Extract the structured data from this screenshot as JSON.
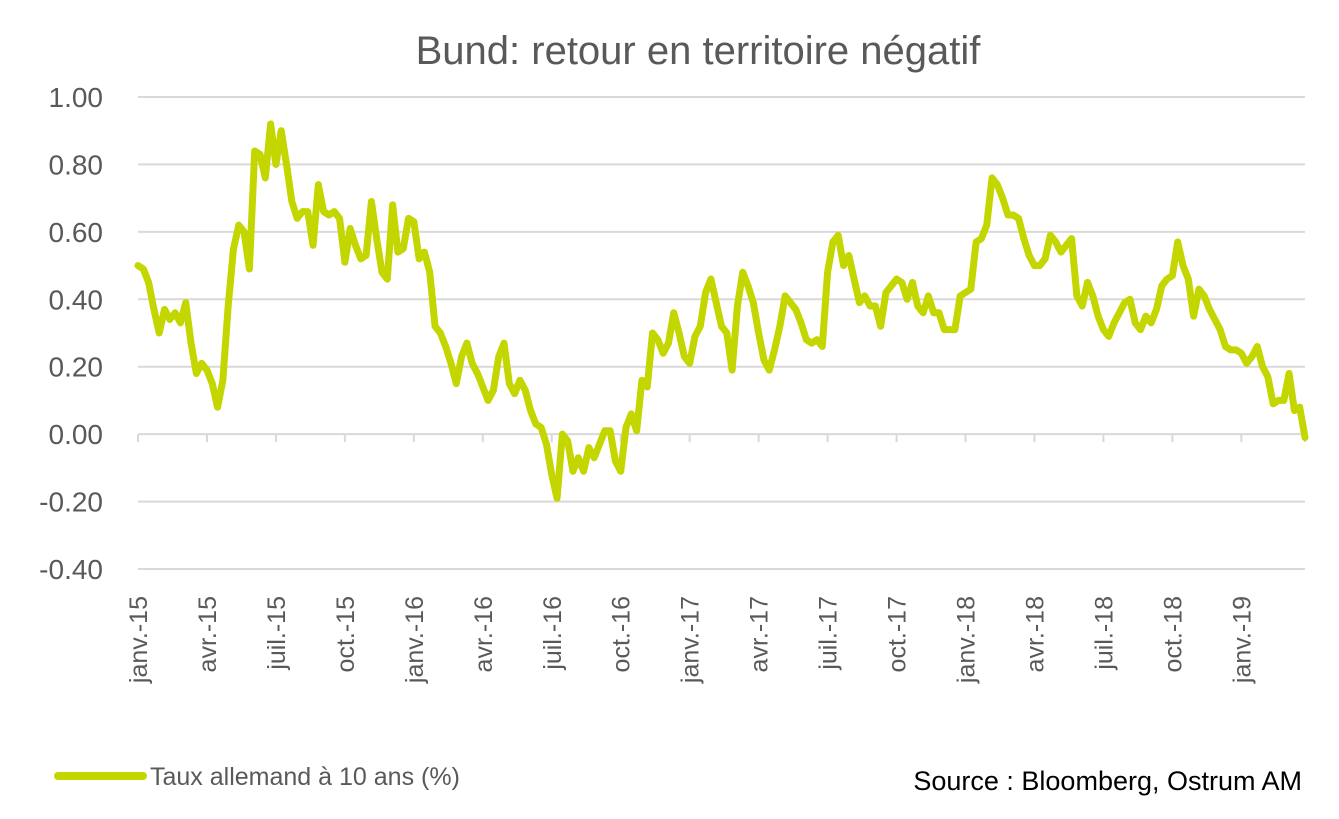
{
  "chart_data": {
    "type": "line",
    "title": "Bund: retour en territoire négatif",
    "xlabel": "",
    "ylabel": "",
    "ylim": [
      -0.4,
      1.0
    ],
    "yticks": [
      "1.00",
      "0.80",
      "0.60",
      "0.40",
      "0.20",
      "0.00",
      "-0.20",
      "-0.40"
    ],
    "ytick_values": [
      1.0,
      0.8,
      0.6,
      0.4,
      0.2,
      0.0,
      -0.2,
      -0.4
    ],
    "xticks": [
      "janv.-15",
      "avr.-15",
      "juil.-15",
      "oct.-15",
      "janv.-16",
      "avr.-16",
      "juil.-16",
      "oct.-16",
      "janv.-17",
      "avr.-17",
      "juil.-17",
      "oct.-17",
      "janv.-18",
      "avr.-18",
      "juil.-18",
      "oct.-18",
      "janv.-19"
    ],
    "grid": true,
    "legend_position": "bottom-left",
    "series": [
      {
        "name": "Taux allemand à 10 ans (%)",
        "color": "#c4d600",
        "points": [
          [
            0,
            0.5
          ],
          [
            1,
            0.49
          ],
          [
            2,
            0.45
          ],
          [
            3,
            0.37
          ],
          [
            4,
            0.3
          ],
          [
            5,
            0.37
          ],
          [
            6,
            0.34
          ],
          [
            7,
            0.36
          ],
          [
            8,
            0.33
          ],
          [
            9,
            0.39
          ],
          [
            10,
            0.27
          ],
          [
            11,
            0.18
          ],
          [
            12,
            0.21
          ],
          [
            13,
            0.19
          ],
          [
            14,
            0.15
          ],
          [
            15,
            0.08
          ],
          [
            16,
            0.16
          ],
          [
            17,
            0.38
          ],
          [
            18,
            0.55
          ],
          [
            19,
            0.62
          ],
          [
            20,
            0.6
          ],
          [
            21,
            0.49
          ],
          [
            22,
            0.84
          ],
          [
            23,
            0.83
          ],
          [
            24,
            0.76
          ],
          [
            25,
            0.92
          ],
          [
            26,
            0.8
          ],
          [
            27,
            0.9
          ],
          [
            28,
            0.8
          ],
          [
            29,
            0.69
          ],
          [
            30,
            0.64
          ],
          [
            31,
            0.66
          ],
          [
            32,
            0.66
          ],
          [
            33,
            0.56
          ],
          [
            34,
            0.74
          ],
          [
            35,
            0.66
          ],
          [
            36,
            0.65
          ],
          [
            37,
            0.66
          ],
          [
            38,
            0.64
          ],
          [
            39,
            0.51
          ],
          [
            40,
            0.61
          ],
          [
            41,
            0.56
          ],
          [
            42,
            0.52
          ],
          [
            43,
            0.53
          ],
          [
            44,
            0.69
          ],
          [
            45,
            0.58
          ],
          [
            46,
            0.48
          ],
          [
            47,
            0.46
          ],
          [
            48,
            0.68
          ],
          [
            49,
            0.54
          ],
          [
            50,
            0.55
          ],
          [
            51,
            0.64
          ],
          [
            52,
            0.63
          ],
          [
            53,
            0.52
          ],
          [
            54,
            0.54
          ],
          [
            55,
            0.48
          ],
          [
            56,
            0.32
          ],
          [
            57,
            0.3
          ],
          [
            58,
            0.26
          ],
          [
            59,
            0.21
          ],
          [
            60,
            0.15
          ],
          [
            61,
            0.23
          ],
          [
            62,
            0.27
          ],
          [
            63,
            0.21
          ],
          [
            64,
            0.18
          ],
          [
            65,
            0.14
          ],
          [
            66,
            0.1
          ],
          [
            67,
            0.13
          ],
          [
            68,
            0.23
          ],
          [
            69,
            0.27
          ],
          [
            70,
            0.15
          ],
          [
            71,
            0.12
          ],
          [
            72,
            0.16
          ],
          [
            73,
            0.13
          ],
          [
            74,
            0.07
          ],
          [
            75,
            0.03
          ],
          [
            76,
            0.02
          ],
          [
            77,
            -0.03
          ],
          [
            78,
            -0.12
          ],
          [
            79,
            -0.19
          ],
          [
            80,
            0.0
          ],
          [
            81,
            -0.02
          ],
          [
            82,
            -0.11
          ],
          [
            83,
            -0.07
          ],
          [
            84,
            -0.11
          ],
          [
            85,
            -0.04
          ],
          [
            86,
            -0.07
          ],
          [
            87,
            -0.03
          ],
          [
            88,
            0.01
          ],
          [
            89,
            0.01
          ],
          [
            90,
            -0.08
          ],
          [
            91,
            -0.11
          ],
          [
            92,
            0.02
          ],
          [
            93,
            0.06
          ],
          [
            94,
            0.01
          ],
          [
            95,
            0.16
          ],
          [
            96,
            0.14
          ],
          [
            97,
            0.3
          ],
          [
            98,
            0.28
          ],
          [
            99,
            0.24
          ],
          [
            100,
            0.27
          ],
          [
            101,
            0.36
          ],
          [
            102,
            0.3
          ],
          [
            103,
            0.23
          ],
          [
            104,
            0.21
          ],
          [
            105,
            0.29
          ],
          [
            106,
            0.32
          ],
          [
            107,
            0.42
          ],
          [
            108,
            0.46
          ],
          [
            109,
            0.39
          ],
          [
            110,
            0.32
          ],
          [
            111,
            0.3
          ],
          [
            112,
            0.19
          ],
          [
            113,
            0.38
          ],
          [
            114,
            0.48
          ],
          [
            115,
            0.44
          ],
          [
            116,
            0.39
          ],
          [
            117,
            0.3
          ],
          [
            118,
            0.22
          ],
          [
            119,
            0.19
          ],
          [
            120,
            0.25
          ],
          [
            121,
            0.32
          ],
          [
            122,
            0.41
          ],
          [
            123,
            0.39
          ],
          [
            124,
            0.37
          ],
          [
            125,
            0.33
          ],
          [
            126,
            0.28
          ],
          [
            127,
            0.27
          ],
          [
            128,
            0.28
          ],
          [
            129,
            0.26
          ],
          [
            130,
            0.48
          ],
          [
            131,
            0.57
          ],
          [
            132,
            0.59
          ],
          [
            133,
            0.5
          ],
          [
            134,
            0.53
          ],
          [
            135,
            0.46
          ],
          [
            136,
            0.39
          ],
          [
            137,
            0.41
          ],
          [
            138,
            0.38
          ],
          [
            139,
            0.38
          ],
          [
            140,
            0.32
          ],
          [
            141,
            0.42
          ],
          [
            142,
            0.44
          ],
          [
            143,
            0.46
          ],
          [
            144,
            0.45
          ],
          [
            145,
            0.4
          ],
          [
            146,
            0.45
          ],
          [
            147,
            0.38
          ],
          [
            148,
            0.36
          ],
          [
            149,
            0.41
          ],
          [
            150,
            0.36
          ],
          [
            151,
            0.36
          ],
          [
            152,
            0.31
          ],
          [
            153,
            0.31
          ],
          [
            154,
            0.31
          ],
          [
            155,
            0.41
          ],
          [
            156,
            0.42
          ],
          [
            157,
            0.43
          ],
          [
            158,
            0.57
          ],
          [
            159,
            0.58
          ],
          [
            160,
            0.62
          ],
          [
            161,
            0.76
          ],
          [
            162,
            0.74
          ],
          [
            163,
            0.7
          ],
          [
            164,
            0.65
          ],
          [
            165,
            0.65
          ],
          [
            166,
            0.64
          ],
          [
            167,
            0.58
          ],
          [
            168,
            0.53
          ],
          [
            169,
            0.5
          ],
          [
            170,
            0.5
          ],
          [
            171,
            0.52
          ],
          [
            172,
            0.59
          ],
          [
            173,
            0.57
          ],
          [
            174,
            0.54
          ],
          [
            175,
            0.56
          ],
          [
            176,
            0.58
          ],
          [
            177,
            0.41
          ],
          [
            178,
            0.38
          ],
          [
            179,
            0.45
          ],
          [
            180,
            0.41
          ],
          [
            181,
            0.35
          ],
          [
            182,
            0.31
          ],
          [
            183,
            0.29
          ],
          [
            184,
            0.33
          ],
          [
            185,
            0.36
          ],
          [
            186,
            0.39
          ],
          [
            187,
            0.4
          ],
          [
            188,
            0.33
          ],
          [
            189,
            0.31
          ],
          [
            190,
            0.35
          ],
          [
            191,
            0.33
          ],
          [
            192,
            0.37
          ],
          [
            193,
            0.44
          ],
          [
            194,
            0.46
          ],
          [
            195,
            0.47
          ],
          [
            196,
            0.57
          ],
          [
            197,
            0.5
          ],
          [
            198,
            0.46
          ],
          [
            199,
            0.35
          ],
          [
            200,
            0.43
          ],
          [
            201,
            0.41
          ],
          [
            202,
            0.37
          ],
          [
            203,
            0.34
          ],
          [
            204,
            0.31
          ],
          [
            205,
            0.26
          ],
          [
            206,
            0.25
          ],
          [
            207,
            0.25
          ],
          [
            208,
            0.24
          ],
          [
            209,
            0.21
          ],
          [
            210,
            0.23
          ],
          [
            211,
            0.26
          ],
          [
            212,
            0.2
          ],
          [
            213,
            0.17
          ],
          [
            214,
            0.09
          ],
          [
            215,
            0.1
          ],
          [
            216,
            0.1
          ],
          [
            217,
            0.18
          ],
          [
            218,
            0.07
          ],
          [
            219,
            0.08
          ],
          [
            220,
            -0.01
          ]
        ]
      }
    ]
  },
  "legend": {
    "label": "Taux allemand à 10 ans (%)"
  },
  "source": "Source : Bloomberg, Ostrum AM"
}
